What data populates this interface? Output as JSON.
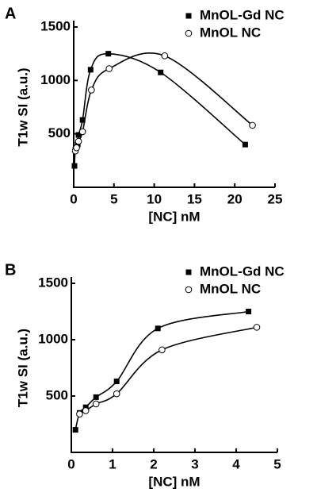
{
  "chart_data": [
    {
      "type": "line",
      "title": "A",
      "xlabel": "[NC] nM",
      "ylabel": "T1w SI (a.u.)",
      "xlim": [
        0,
        25
      ],
      "xticks": [
        0,
        5,
        10,
        15,
        20,
        25
      ],
      "ylim": [
        0,
        1500
      ],
      "yticks": [
        500,
        1000,
        1500
      ],
      "legend": "upper right",
      "series": [
        {
          "name": "MnOL-Gd NC",
          "marker": "filled-square",
          "color": "#000000",
          "x": [
            0.1,
            0.2,
            0.5,
            0.6,
            1.1,
            2.1,
            4.3,
            10.8,
            21.3
          ],
          "values": [
            200,
            350,
            400,
            490,
            630,
            1100,
            1250,
            1075,
            400
          ]
        },
        {
          "name": "MnOL NC",
          "marker": "open-circle",
          "color": "#000000",
          "x": [
            0.2,
            0.35,
            0.6,
            1.1,
            2.2,
            4.4,
            11.3,
            22.2
          ],
          "values": [
            340,
            370,
            430,
            520,
            910,
            1110,
            1230,
            580
          ]
        }
      ]
    },
    {
      "type": "line",
      "title": "B",
      "xlabel": "[NC] nM",
      "ylabel": "T1w SI (a.u.)",
      "xlim": [
        0,
        5
      ],
      "xticks": [
        0,
        1,
        2,
        3,
        4,
        5
      ],
      "ylim": [
        0,
        1500
      ],
      "yticks": [
        500,
        1000,
        1500
      ],
      "legend": "upper right",
      "series": [
        {
          "name": "MnOL-Gd NC",
          "marker": "filled-square",
          "color": "#000000",
          "x": [
            0.1,
            0.2,
            0.35,
            0.6,
            1.1,
            2.1,
            4.3
          ],
          "values": [
            200,
            350,
            400,
            490,
            630,
            1100,
            1250
          ]
        },
        {
          "name": "MnOL NC",
          "marker": "open-circle",
          "color": "#000000",
          "x": [
            0.2,
            0.35,
            0.6,
            1.1,
            2.2,
            4.5
          ],
          "values": [
            340,
            370,
            430,
            520,
            910,
            1110
          ]
        }
      ]
    }
  ]
}
